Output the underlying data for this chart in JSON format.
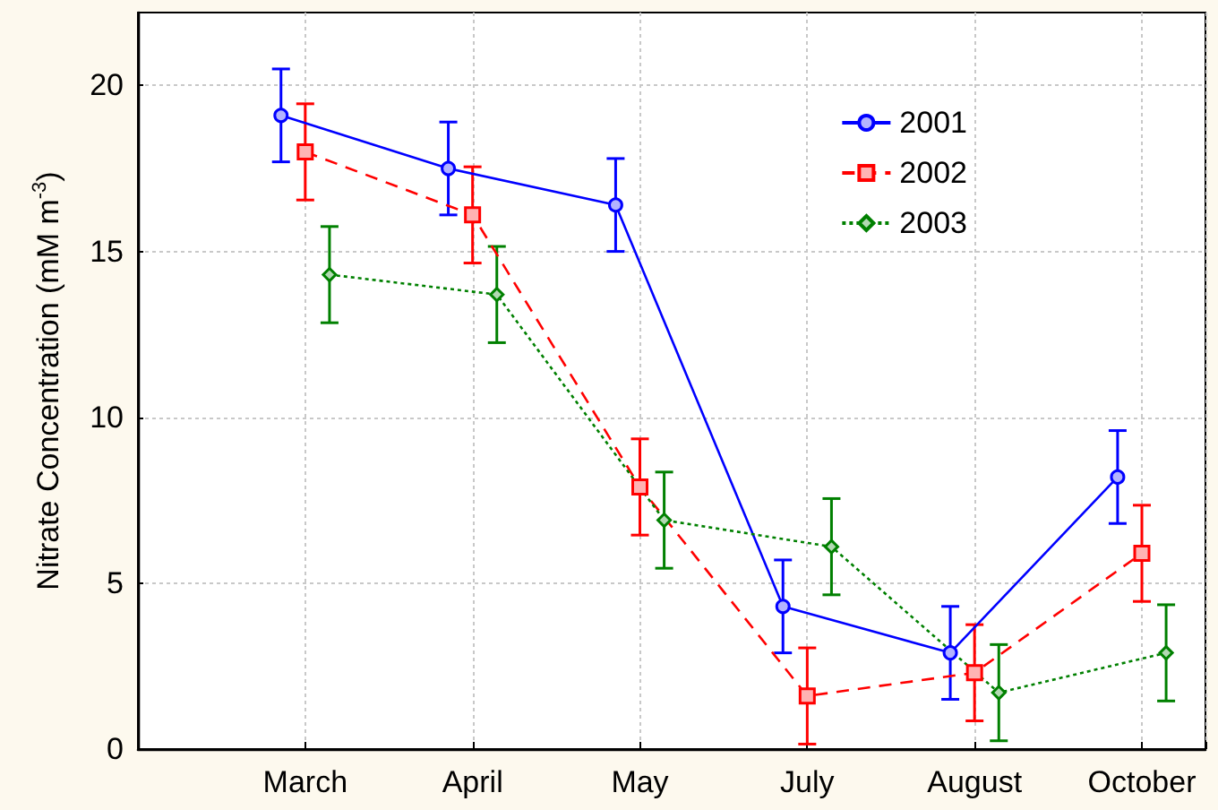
{
  "chart_data": {
    "type": "line",
    "ylabel": "Nitrate Concentration (mM m$^{-3}$)",
    "categories": [
      "March",
      "April",
      "May",
      "July",
      "August",
      "October"
    ],
    "series": [
      {
        "name": "2001",
        "color": "#0000ff",
        "marker": "circle",
        "line_style": "solid",
        "values": [
          19.1,
          17.5,
          16.4,
          4.3,
          2.9,
          8.2
        ],
        "errors": [
          1.4,
          1.4,
          1.4,
          1.4,
          1.4,
          1.4
        ]
      },
      {
        "name": "2002",
        "color": "#ff0000",
        "marker": "square",
        "line_style": "dashed",
        "values": [
          18.0,
          16.1,
          7.9,
          1.6,
          2.3,
          5.9
        ],
        "errors": [
          1.45,
          1.45,
          1.45,
          1.45,
          1.45,
          1.45
        ]
      },
      {
        "name": "2003",
        "color": "#008000",
        "marker": "diamond",
        "line_style": "dotted",
        "values": [
          14.3,
          13.7,
          6.9,
          6.1,
          1.7,
          2.9
        ],
        "errors": [
          1.45,
          1.45,
          1.45,
          1.45,
          1.45,
          1.45
        ]
      }
    ],
    "ylim": [
      0,
      22.2
    ],
    "yticks": [
      0,
      5,
      10,
      15,
      20
    ],
    "grid": true,
    "legend": "top right"
  }
}
